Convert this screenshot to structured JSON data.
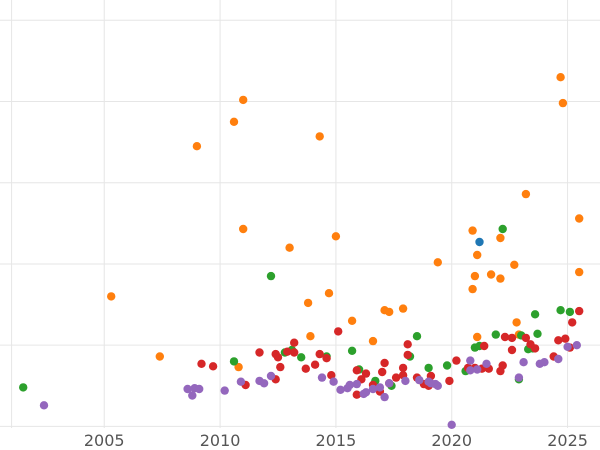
{
  "chart_data": {
    "type": "scatter",
    "title": "",
    "xlabel": "",
    "ylabel": "",
    "xlim": [
      2000.5,
      2026.4
    ],
    "ylim": [
      -0.02,
      5.25
    ],
    "xticks": [
      2005,
      2010,
      2015,
      2020,
      2025
    ],
    "yticks": [
      0,
      1,
      2,
      3,
      4,
      5
    ],
    "x_tick_labels": [
      "2005",
      "2010",
      "2015",
      "2020",
      "2025"
    ],
    "grid": true,
    "legend": "none",
    "series": [
      {
        "color": "#ff7f0e",
        "points": [
          [
            2005.3,
            1.6
          ],
          [
            2007.4,
            0.86
          ],
          [
            2009.0,
            3.45
          ],
          [
            2010.6,
            3.75
          ],
          [
            2011.0,
            4.02
          ],
          [
            2011.0,
            2.43
          ],
          [
            2010.8,
            0.73
          ],
          [
            2013.0,
            2.2
          ],
          [
            2013.8,
            1.52
          ],
          [
            2013.9,
            1.11
          ],
          [
            2014.3,
            3.57
          ],
          [
            2014.7,
            1.64
          ],
          [
            2015.0,
            2.34
          ],
          [
            2015.7,
            1.3
          ],
          [
            2016.6,
            1.05
          ],
          [
            2017.1,
            1.43
          ],
          [
            2017.3,
            1.41
          ],
          [
            2017.9,
            1.45
          ],
          [
            2019.4,
            2.02
          ],
          [
            2020.9,
            1.69
          ],
          [
            2020.9,
            2.41
          ],
          [
            2021.1,
            2.11
          ],
          [
            2021.0,
            1.85
          ],
          [
            2021.1,
            1.1
          ],
          [
            2021.7,
            1.87
          ],
          [
            2022.1,
            2.32
          ],
          [
            2022.1,
            1.82
          ],
          [
            2022.7,
            1.99
          ],
          [
            2022.8,
            1.28
          ],
          [
            2022.9,
            1.13
          ],
          [
            2023.2,
            2.86
          ],
          [
            2024.7,
            4.3
          ],
          [
            2024.8,
            3.98
          ],
          [
            2025.5,
            2.56
          ],
          [
            2025.5,
            1.9
          ]
        ]
      },
      {
        "color": "#2ca02c",
        "points": [
          [
            2001.5,
            0.48
          ],
          [
            2010.6,
            0.8
          ],
          [
            2012.2,
            1.85
          ],
          [
            2012.8,
            0.91
          ],
          [
            2013.1,
            0.94
          ],
          [
            2013.5,
            0.85
          ],
          [
            2014.6,
            0.86
          ],
          [
            2015.7,
            0.93
          ],
          [
            2016.0,
            0.7
          ],
          [
            2016.7,
            0.56
          ],
          [
            2017.4,
            0.5
          ],
          [
            2018.2,
            0.86
          ],
          [
            2018.5,
            1.11
          ],
          [
            2019.0,
            0.72
          ],
          [
            2019.8,
            0.75
          ],
          [
            2020.6,
            0.68
          ],
          [
            2021.0,
            0.97
          ],
          [
            2021.2,
            0.99
          ],
          [
            2021.9,
            1.13
          ],
          [
            2022.2,
            2.43
          ],
          [
            2022.9,
            0.58
          ],
          [
            2023.0,
            1.12
          ],
          [
            2023.3,
            0.95
          ],
          [
            2023.5,
            0.96
          ],
          [
            2023.6,
            1.38
          ],
          [
            2023.7,
            1.14
          ],
          [
            2024.7,
            1.43
          ],
          [
            2025.1,
            1.41
          ]
        ]
      },
      {
        "color": "#d62728",
        "points": [
          [
            2009.2,
            0.77
          ],
          [
            2009.7,
            0.74
          ],
          [
            2011.1,
            0.51
          ],
          [
            2011.7,
            0.91
          ],
          [
            2012.4,
            0.89
          ],
          [
            2012.5,
            0.85
          ],
          [
            2012.4,
            0.58
          ],
          [
            2012.6,
            0.73
          ],
          [
            2012.9,
            0.92
          ],
          [
            2013.2,
            0.91
          ],
          [
            2013.2,
            1.03
          ],
          [
            2013.7,
            0.71
          ],
          [
            2014.1,
            0.76
          ],
          [
            2014.3,
            0.89
          ],
          [
            2014.6,
            0.84
          ],
          [
            2014.8,
            0.63
          ],
          [
            2015.1,
            1.17
          ],
          [
            2015.9,
            0.39
          ],
          [
            2015.9,
            0.69
          ],
          [
            2016.1,
            0.58
          ],
          [
            2016.3,
            0.65
          ],
          [
            2016.6,
            0.51
          ],
          [
            2016.9,
            0.43
          ],
          [
            2017.0,
            0.67
          ],
          [
            2017.1,
            0.78
          ],
          [
            2017.3,
            0.53
          ],
          [
            2017.6,
            0.6
          ],
          [
            2017.9,
            0.63
          ],
          [
            2017.9,
            0.72
          ],
          [
            2018.1,
            0.88
          ],
          [
            2018.1,
            1.01
          ],
          [
            2018.5,
            0.6
          ],
          [
            2018.8,
            0.52
          ],
          [
            2019.0,
            0.5
          ],
          [
            2019.1,
            0.62
          ],
          [
            2019.9,
            0.56
          ],
          [
            2020.2,
            0.81
          ],
          [
            2020.7,
            0.72
          ],
          [
            2021.0,
            0.72
          ],
          [
            2021.3,
            0.71
          ],
          [
            2021.4,
            0.99
          ],
          [
            2021.6,
            0.71
          ],
          [
            2022.1,
            0.68
          ],
          [
            2022.2,
            0.75
          ],
          [
            2022.3,
            1.1
          ],
          [
            2022.6,
            0.94
          ],
          [
            2022.6,
            1.09
          ],
          [
            2023.2,
            1.09
          ],
          [
            2023.4,
            1.01
          ],
          [
            2023.6,
            0.96
          ],
          [
            2024.4,
            0.86
          ],
          [
            2024.6,
            1.06
          ],
          [
            2024.9,
            1.08
          ],
          [
            2025.1,
            0.97
          ],
          [
            2025.2,
            1.28
          ],
          [
            2025.5,
            1.42
          ]
        ]
      },
      {
        "color": "#9467bd",
        "points": [
          [
            2002.4,
            0.26
          ],
          [
            2008.6,
            0.46
          ],
          [
            2008.8,
            0.38
          ],
          [
            2008.9,
            0.47
          ],
          [
            2009.1,
            0.46
          ],
          [
            2010.2,
            0.44
          ],
          [
            2010.9,
            0.55
          ],
          [
            2011.7,
            0.56
          ],
          [
            2011.9,
            0.53
          ],
          [
            2012.2,
            0.62
          ],
          [
            2014.4,
            0.6
          ],
          [
            2014.9,
            0.55
          ],
          [
            2015.2,
            0.45
          ],
          [
            2015.5,
            0.47
          ],
          [
            2015.6,
            0.51
          ],
          [
            2015.9,
            0.52
          ],
          [
            2016.2,
            0.4
          ],
          [
            2016.3,
            0.42
          ],
          [
            2016.6,
            0.46
          ],
          [
            2016.9,
            0.48
          ],
          [
            2017.1,
            0.36
          ],
          [
            2017.3,
            0.53
          ],
          [
            2018.0,
            0.56
          ],
          [
            2018.6,
            0.57
          ],
          [
            2019.0,
            0.55
          ],
          [
            2019.1,
            0.53
          ],
          [
            2019.3,
            0.52
          ],
          [
            2019.4,
            0.5
          ],
          [
            2020.0,
            0.02
          ],
          [
            2020.8,
            0.69
          ],
          [
            2020.8,
            0.81
          ],
          [
            2021.1,
            0.7
          ],
          [
            2021.5,
            0.77
          ],
          [
            2022.9,
            0.6
          ],
          [
            2023.1,
            0.79
          ],
          [
            2023.8,
            0.77
          ],
          [
            2024.0,
            0.79
          ],
          [
            2024.6,
            0.83
          ],
          [
            2025.0,
            0.98
          ],
          [
            2025.4,
            1.0
          ]
        ]
      },
      {
        "color": "#1f77b4",
        "points": [
          [
            2021.2,
            2.27
          ]
        ]
      }
    ]
  }
}
